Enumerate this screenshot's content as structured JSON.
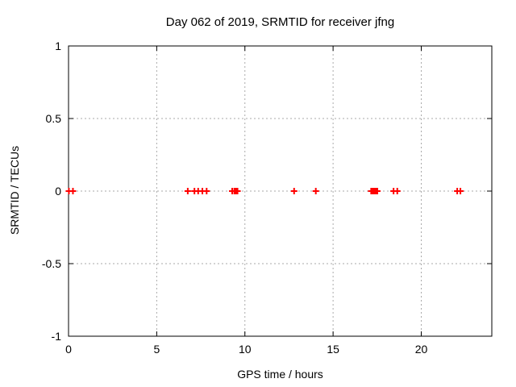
{
  "window": {
    "background": "#ffffff"
  },
  "chart_data": {
    "type": "scatter",
    "title": "Day 062 of 2019, SRMTID for receiver jfng",
    "xlabel": "GPS time / hours",
    "ylabel": "SRMTID / TECUs",
    "xlim": [
      0,
      24
    ],
    "ylim": [
      -1,
      1
    ],
    "x_ticks": [
      0,
      5,
      10,
      15,
      20
    ],
    "x_tick_labels": [
      "0",
      "5",
      "10",
      "15",
      "20"
    ],
    "y_ticks": [
      -1,
      -0.5,
      0,
      0.5,
      1
    ],
    "y_tick_labels": [
      "-1",
      "-0.5",
      "0",
      "0.5",
      "1"
    ],
    "grid": true,
    "legend": "none",
    "marker": "plus",
    "marker_color": "#ff0000",
    "marker_half_size": 4,
    "grid_color": "#aaaaaa",
    "axis_color": "#000000",
    "series": [
      {
        "name": "SRMTID",
        "x": [
          0.02,
          0.25,
          6.76,
          7.14,
          7.35,
          7.59,
          7.83,
          9.28,
          9.4,
          9.46,
          9.52,
          9.58,
          12.79,
          14.02,
          17.16,
          17.24,
          17.31,
          17.37,
          17.44,
          17.51,
          18.43,
          18.64,
          22.04,
          22.22
        ],
        "y": [
          0,
          0,
          0,
          0,
          0,
          0,
          0,
          0,
          0,
          0,
          0,
          0,
          0,
          0,
          0,
          0,
          0,
          0,
          0,
          0,
          0,
          0,
          0,
          0
        ]
      }
    ]
  }
}
